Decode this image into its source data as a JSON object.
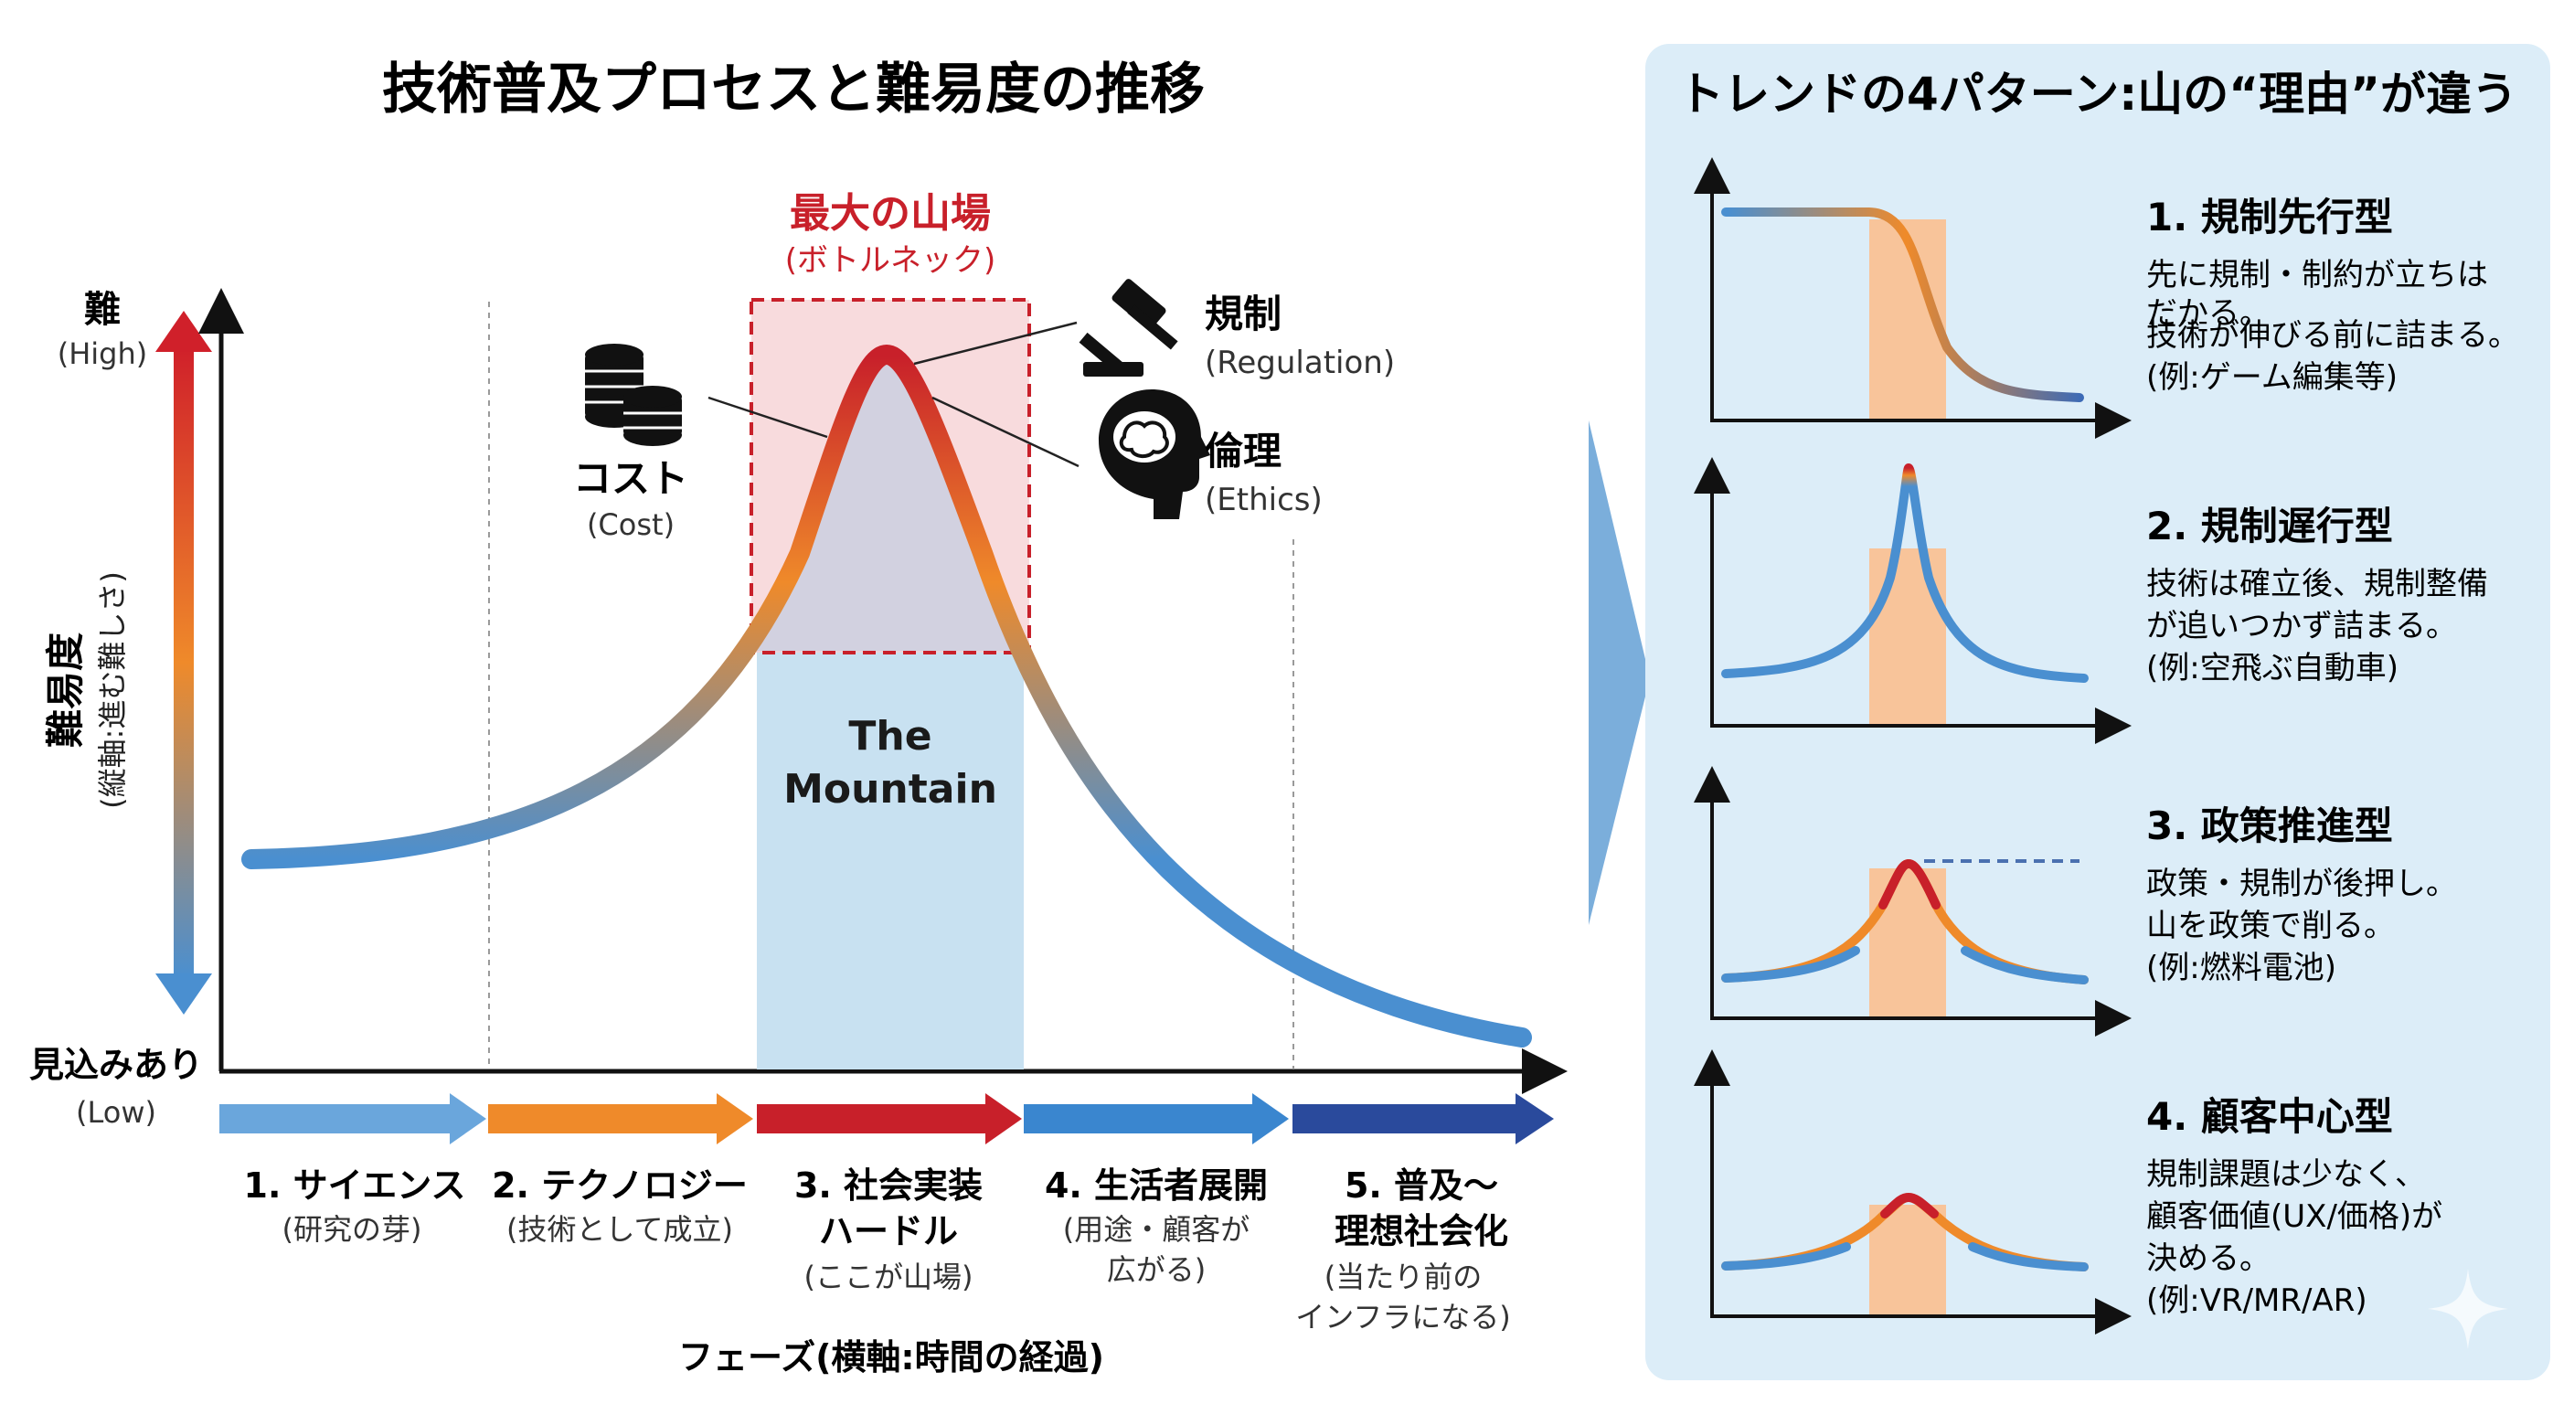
{
  "colors": {
    "red": "#c8202a",
    "orange": "#ef8a2a",
    "blue": "#4a8fd0",
    "navy": "#2a4a9c",
    "panel_bg": "#dcedf8",
    "mountain_band": "#c8e1f1",
    "peak_box": "#f5cfd2",
    "pattern_band": "#f8c49a"
  },
  "main": {
    "title": "技術普及プロセスと難易度の推移",
    "y_axis": {
      "top": "難",
      "top_sub": "(High)",
      "label": "難易度",
      "label_sub": "(縦軸:進む難しさ)",
      "bottom": "見込みあり",
      "bottom_sub": "(Low)"
    },
    "x_axis_label": "フェーズ(横軸:時間の経過)",
    "peak": {
      "title": "最大の山場",
      "sub": "(ボトルネック)"
    },
    "mountain_label": [
      "The",
      "Mountain"
    ],
    "factors": {
      "cost": {
        "label": "コスト",
        "sub": "(Cost)",
        "icon": "coins-icon"
      },
      "regulation": {
        "label": "規制",
        "sub": "(Regulation)",
        "icon": "gavel-icon"
      },
      "ethics": {
        "label": "倫理",
        "sub": "(Ethics)",
        "icon": "brain-head-icon"
      }
    },
    "phases": [
      {
        "title": [
          "1. サイエンス"
        ],
        "sub": [
          "(研究の芽)"
        ]
      },
      {
        "title": [
          "2. テクノロジー"
        ],
        "sub": [
          "(技術として成立)"
        ]
      },
      {
        "title": [
          "3. 社会実装",
          "ハードル"
        ],
        "sub": [
          "(ここが山場)"
        ]
      },
      {
        "title": [
          "4. 生活者展開"
        ],
        "sub": [
          "(用途・顧客が",
          "広がる)"
        ]
      },
      {
        "title": [
          "5. 普及〜",
          "理想社会化"
        ],
        "sub": [
          "(当たり前の",
          "インフラになる)"
        ]
      }
    ]
  },
  "panel": {
    "title": "トレンドの4パターン:山の“理由”が違う",
    "patterns": [
      {
        "title": "1. 規制先行型",
        "desc": [
          "先に規制・制約が立ちは",
          "だかる。",
          "技術が伸びる前に詰まる。",
          "(例:ゲーム編集等)"
        ]
      },
      {
        "title": "2. 規制遅行型",
        "desc": [
          "技術は確立後、規制整備",
          "が追いつかず詰まる。",
          "(例:空飛ぶ自動車)"
        ]
      },
      {
        "title": "3. 政策推進型",
        "desc": [
          "政策・規制が後押し。",
          "山を政策で削る。",
          "(例:燃料電池)"
        ]
      },
      {
        "title": "4. 顧客中心型",
        "desc": [
          "規制課題は少なく、",
          "顧客価値(UX/価格)が",
          "決める。",
          "(例:VR/MR/AR)"
        ]
      }
    ]
  }
}
